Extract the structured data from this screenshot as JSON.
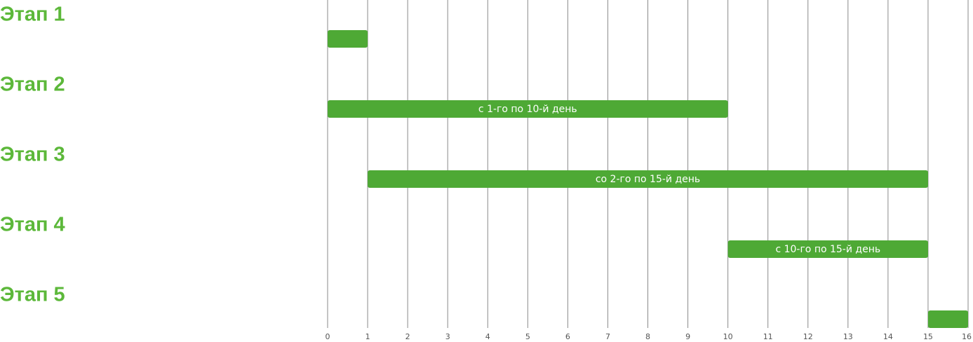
{
  "chart_data": {
    "type": "gantt",
    "categories": [
      "Этап 1",
      "Этап 2",
      "Этап 3",
      "Этап 4",
      "Этап 5"
    ],
    "start": [
      0,
      0,
      1,
      10,
      15
    ],
    "end": [
      1,
      10,
      15,
      15,
      16
    ],
    "bar_labels": [
      null,
      "с 1-го по 10-й день",
      "со 2-го по 15-й день",
      "с 10-го по 15-й день",
      null
    ],
    "color": "#4ea935",
    "label_color": "#5cb83a",
    "xlim": [
      0,
      16
    ],
    "xticks": [
      0,
      1,
      2,
      3,
      4,
      5,
      6,
      7,
      8,
      9,
      10,
      11,
      12,
      13,
      14,
      15,
      16
    ],
    "grid": true
  }
}
